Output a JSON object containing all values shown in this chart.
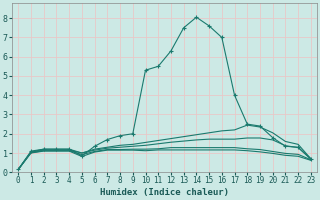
{
  "title": "",
  "xlabel": "Humidex (Indice chaleur)",
  "ylabel": "",
  "bg_color": "#cce9e5",
  "grid_color": "#e8c8c8",
  "line_color": "#1a7a6e",
  "xlim": [
    -0.5,
    23.5
  ],
  "ylim": [
    0,
    8.8
  ],
  "xticks": [
    0,
    1,
    2,
    3,
    4,
    5,
    6,
    7,
    8,
    9,
    10,
    11,
    12,
    13,
    14,
    15,
    16,
    17,
    18,
    19,
    20,
    21,
    22,
    23
  ],
  "yticks": [
    0,
    1,
    2,
    3,
    4,
    5,
    6,
    7,
    8
  ],
  "curves": [
    {
      "x": [
        0,
        1,
        2,
        3,
        4,
        5,
        6,
        7,
        8,
        9,
        10,
        11,
        12,
        13,
        14,
        15,
        16,
        17,
        18,
        19,
        20,
        21,
        22,
        23
      ],
      "y": [
        0.15,
        1.1,
        1.2,
        1.2,
        1.2,
        0.85,
        1.35,
        1.7,
        1.9,
        2.0,
        5.3,
        5.5,
        6.3,
        7.5,
        8.05,
        7.6,
        7.0,
        4.0,
        2.5,
        2.4,
        1.8,
        1.35,
        1.3,
        0.7
      ],
      "marker": "+"
    },
    {
      "x": [
        0,
        1,
        2,
        3,
        4,
        5,
        6,
        7,
        8,
        9,
        10,
        11,
        12,
        13,
        14,
        15,
        16,
        17,
        18,
        19,
        20,
        21,
        22,
        23
      ],
      "y": [
        0.15,
        1.05,
        1.2,
        1.2,
        1.2,
        1.0,
        1.2,
        1.3,
        1.4,
        1.45,
        1.55,
        1.65,
        1.75,
        1.85,
        1.95,
        2.05,
        2.15,
        2.2,
        2.45,
        2.35,
        2.05,
        1.6,
        1.45,
        0.7
      ],
      "marker": null
    },
    {
      "x": [
        0,
        1,
        2,
        3,
        4,
        5,
        6,
        7,
        8,
        9,
        10,
        11,
        12,
        13,
        14,
        15,
        16,
        17,
        18,
        19,
        20,
        21,
        22,
        23
      ],
      "y": [
        0.15,
        1.05,
        1.15,
        1.15,
        1.15,
        1.0,
        1.15,
        1.25,
        1.3,
        1.35,
        1.4,
        1.48,
        1.56,
        1.62,
        1.68,
        1.72,
        1.72,
        1.72,
        1.78,
        1.78,
        1.68,
        1.38,
        1.28,
        0.68
      ],
      "marker": null
    },
    {
      "x": [
        0,
        1,
        2,
        3,
        4,
        5,
        6,
        7,
        8,
        9,
        10,
        11,
        12,
        13,
        14,
        15,
        16,
        17,
        18,
        19,
        20,
        21,
        22,
        23
      ],
      "y": [
        0.15,
        1.02,
        1.12,
        1.12,
        1.12,
        0.92,
        1.08,
        1.18,
        1.18,
        1.2,
        1.2,
        1.22,
        1.28,
        1.28,
        1.28,
        1.28,
        1.28,
        1.28,
        1.22,
        1.18,
        1.08,
        0.98,
        0.93,
        0.65
      ],
      "marker": null
    },
    {
      "x": [
        0,
        1,
        2,
        3,
        4,
        5,
        6,
        7,
        8,
        9,
        10,
        11,
        12,
        13,
        14,
        15,
        16,
        17,
        18,
        19,
        20,
        21,
        22,
        23
      ],
      "y": [
        0.15,
        1.0,
        1.1,
        1.1,
        1.1,
        0.82,
        1.05,
        1.15,
        1.15,
        1.15,
        1.12,
        1.16,
        1.16,
        1.16,
        1.16,
        1.16,
        1.16,
        1.16,
        1.12,
        1.06,
        0.98,
        0.88,
        0.83,
        0.62
      ],
      "marker": null
    }
  ]
}
